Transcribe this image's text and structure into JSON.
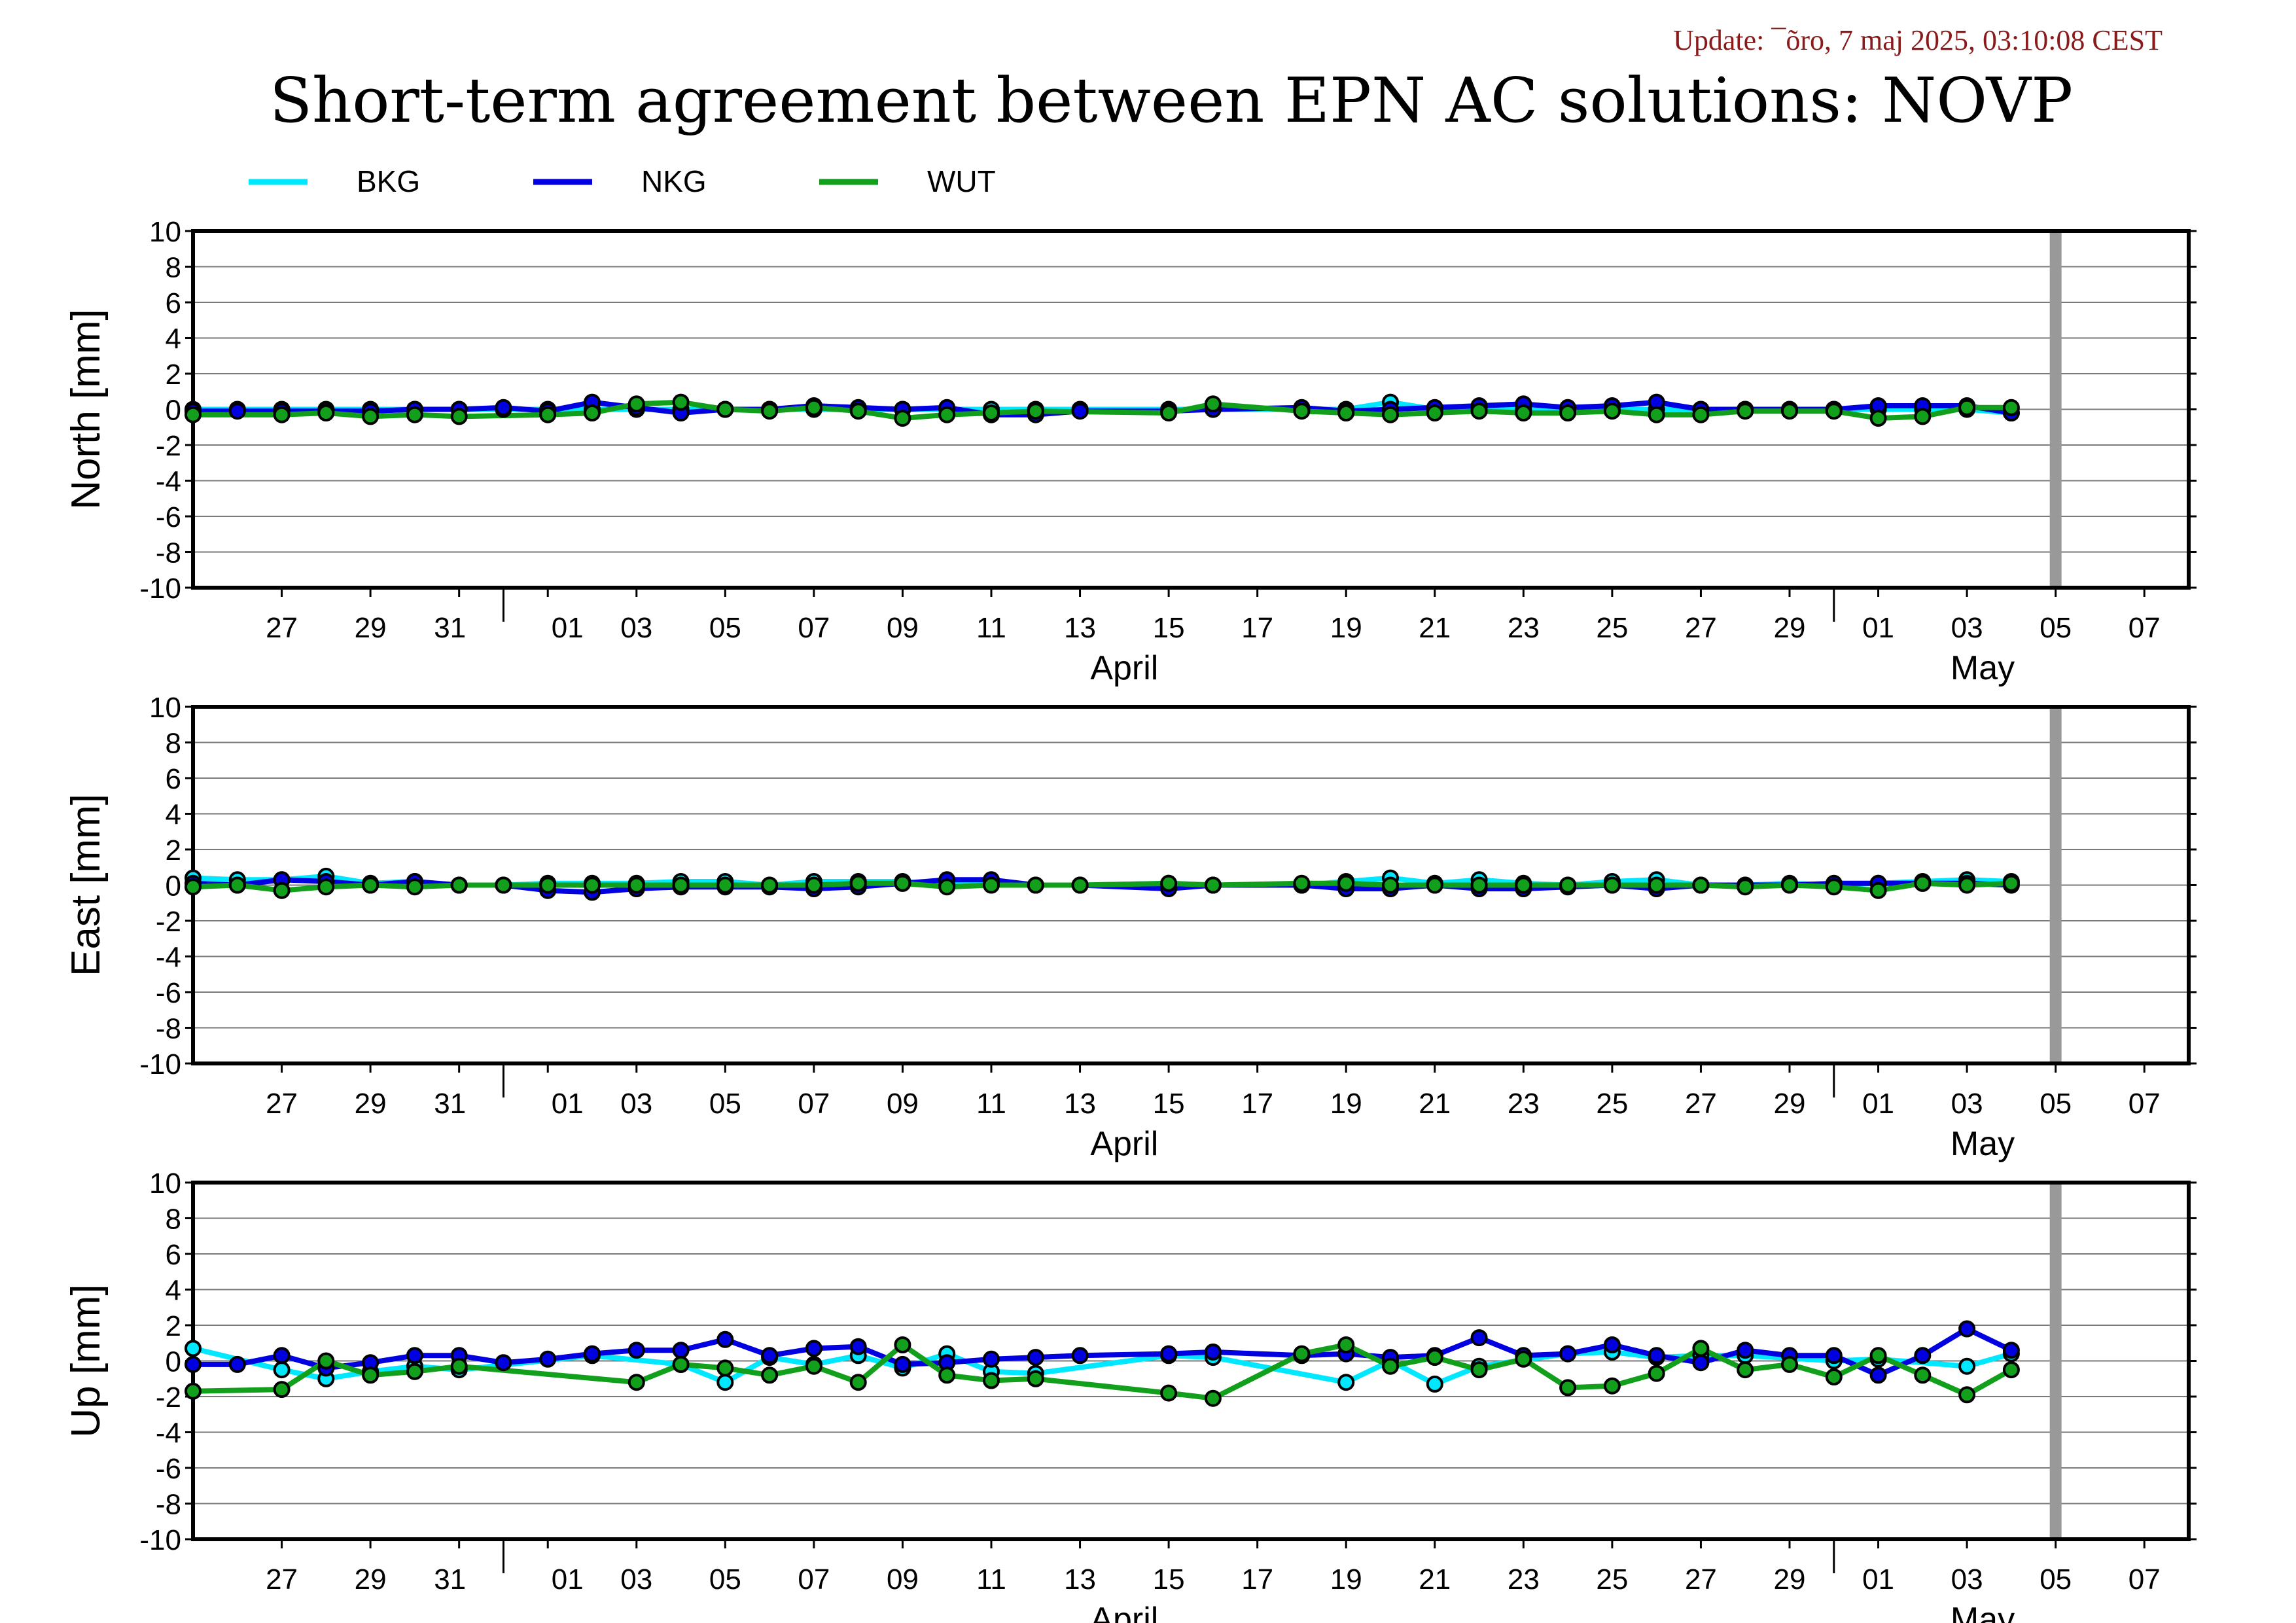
{
  "header": {
    "update": "Update: ¯õro, 7 maj 2025, 03:10:08 CEST",
    "title": "Short-term agreement between EPN AC solutions: NOVP"
  },
  "colors": {
    "BKG": "#00e8ff",
    "NKG": "#0000e0",
    "WUT": "#12a01c",
    "update_text": "#8b1a1a",
    "current_day_bar": "#999999"
  },
  "legend": [
    {
      "name": "BKG",
      "color": "#00e8ff"
    },
    {
      "name": "NKG",
      "color": "#0000e0"
    },
    {
      "name": "WUT",
      "color": "#12a01c"
    }
  ],
  "chart_data": {
    "type": "line",
    "x_start": "2025-03-25",
    "x_end": "2025-05-09",
    "current_day": "2025-05-06",
    "tick_labels": [
      "27",
      "29",
      "31",
      "01",
      "03",
      "05",
      "07",
      "09",
      "11",
      "13",
      "15",
      "17",
      "19",
      "21",
      "23",
      "25",
      "27",
      "29",
      "01",
      "03",
      "05",
      "07",
      "09"
    ],
    "month_labels": [
      "April",
      "May"
    ],
    "ylim": [
      -10,
      10
    ],
    "y_ticks": [
      10,
      8,
      6,
      4,
      2,
      0,
      -2,
      -4,
      -6,
      -8,
      -10
    ],
    "grid": true,
    "legend_position": "top",
    "panels": [
      {
        "ylabel": "North [mm]",
        "series": [
          {
            "name": "BKG",
            "dates": [
              "2025-03-25",
              "2025-03-26",
              "2025-03-27",
              "2025-03-28",
              "2025-03-29",
              "2025-03-30",
              "2025-03-31",
              "2025-04-01",
              "2025-04-02",
              "2025-04-03",
              "2025-04-04",
              "2025-04-05",
              "2025-04-06",
              "2025-04-07",
              "2025-04-08",
              "2025-04-09",
              "2025-04-10",
              "2025-04-11",
              "2025-04-12",
              "2025-04-13",
              "2025-04-14",
              "2025-04-16",
              "2025-04-17",
              "2025-04-19",
              "2025-04-20",
              "2025-04-21",
              "2025-04-22",
              "2025-04-23",
              "2025-04-24",
              "2025-04-25",
              "2025-04-26",
              "2025-04-27",
              "2025-04-28",
              "2025-04-29",
              "2025-04-30",
              "2025-05-01",
              "2025-05-02",
              "2025-05-03",
              "2025-05-04",
              "2025-05-05"
            ],
            "values": [
              0,
              0,
              0,
              0,
              0,
              0,
              0,
              0,
              0,
              0,
              0,
              0,
              0,
              0,
              0,
              0,
              0,
              0,
              0,
              0,
              0,
              0,
              0,
              0,
              0,
              0.4,
              0,
              0,
              0,
              0,
              0,
              0,
              0,
              0,
              0,
              0,
              0,
              0,
              0,
              -0.2
            ]
          },
          {
            "name": "NKG",
            "dates": [
              "2025-03-25",
              "2025-03-26",
              "2025-03-27",
              "2025-03-28",
              "2025-03-29",
              "2025-03-30",
              "2025-03-31",
              "2025-04-01",
              "2025-04-02",
              "2025-04-03",
              "2025-04-04",
              "2025-04-05",
              "2025-04-06",
              "2025-04-07",
              "2025-04-08",
              "2025-04-09",
              "2025-04-10",
              "2025-04-11",
              "2025-04-12",
              "2025-04-13",
              "2025-04-14",
              "2025-04-16",
              "2025-04-17",
              "2025-04-19",
              "2025-04-20",
              "2025-04-21",
              "2025-04-22",
              "2025-04-23",
              "2025-04-24",
              "2025-04-25",
              "2025-04-26",
              "2025-04-27",
              "2025-04-28",
              "2025-04-29",
              "2025-04-30",
              "2025-05-01",
              "2025-05-02",
              "2025-05-03",
              "2025-05-04",
              "2025-05-05"
            ],
            "values": [
              -0.1,
              -0.1,
              -0.1,
              -0.1,
              -0.1,
              0,
              0,
              0.1,
              -0.1,
              0.4,
              0.1,
              -0.2,
              0,
              0,
              0.2,
              0.1,
              0,
              0.1,
              -0.3,
              -0.3,
              -0.1,
              -0.1,
              0,
              0.1,
              -0.1,
              0,
              0.1,
              0.2,
              0.3,
              0.1,
              0.2,
              0.4,
              0,
              0,
              0,
              0,
              0.2,
              0.2,
              0.2,
              -0.2
            ]
          },
          {
            "name": "WUT",
            "dates": [
              "2025-03-25",
              "2025-03-27",
              "2025-03-28",
              "2025-03-29",
              "2025-03-30",
              "2025-03-31",
              "2025-04-02",
              "2025-04-03",
              "2025-04-04",
              "2025-04-05",
              "2025-04-06",
              "2025-04-07",
              "2025-04-08",
              "2025-04-09",
              "2025-04-10",
              "2025-04-11",
              "2025-04-12",
              "2025-04-13",
              "2025-04-16",
              "2025-04-17",
              "2025-04-19",
              "2025-04-20",
              "2025-04-21",
              "2025-04-22",
              "2025-04-23",
              "2025-04-24",
              "2025-04-25",
              "2025-04-26",
              "2025-04-27",
              "2025-04-28",
              "2025-04-29",
              "2025-04-30",
              "2025-05-01",
              "2025-05-02",
              "2025-05-03",
              "2025-05-04",
              "2025-05-05"
            ],
            "values": [
              -0.3,
              -0.3,
              -0.2,
              -0.4,
              -0.3,
              -0.4,
              -0.3,
              -0.2,
              0.3,
              0.4,
              0,
              -0.1,
              0.1,
              -0.1,
              -0.5,
              -0.3,
              -0.2,
              -0.1,
              -0.2,
              0.3,
              -0.1,
              -0.2,
              -0.3,
              -0.2,
              -0.1,
              -0.2,
              -0.2,
              -0.1,
              -0.3,
              -0.3,
              -0.1,
              -0.1,
              -0.1,
              -0.5,
              -0.4,
              0.1,
              0.1
            ]
          }
        ]
      },
      {
        "ylabel": "East [mm]",
        "series": [
          {
            "name": "BKG",
            "dates": [
              "2025-03-25",
              "2025-03-26",
              "2025-03-27",
              "2025-03-28",
              "2025-03-29",
              "2025-03-30",
              "2025-03-31",
              "2025-04-01",
              "2025-04-02",
              "2025-04-03",
              "2025-04-04",
              "2025-04-05",
              "2025-04-06",
              "2025-04-07",
              "2025-04-08",
              "2025-04-09",
              "2025-04-10",
              "2025-04-11",
              "2025-04-12",
              "2025-04-13",
              "2025-04-14",
              "2025-04-16",
              "2025-04-17",
              "2025-04-19",
              "2025-04-20",
              "2025-04-21",
              "2025-04-22",
              "2025-04-23",
              "2025-04-24",
              "2025-04-25",
              "2025-04-26",
              "2025-04-27",
              "2025-04-28",
              "2025-04-29",
              "2025-04-30",
              "2025-05-01",
              "2025-05-02",
              "2025-05-03",
              "2025-05-04",
              "2025-05-05"
            ],
            "values": [
              0.4,
              0.3,
              0.3,
              0.5,
              0.1,
              0.2,
              0,
              0,
              0.1,
              0.1,
              0.1,
              0.2,
              0.2,
              0,
              0.2,
              0.2,
              0.2,
              0,
              0.2,
              0,
              0,
              0.1,
              0,
              0,
              0.2,
              0.4,
              0.1,
              0.3,
              0.1,
              0,
              0.2,
              0.3,
              0,
              0,
              0.1,
              0,
              0.1,
              0.2,
              0.3,
              0.2
            ]
          },
          {
            "name": "NKG",
            "dates": [
              "2025-03-25",
              "2025-03-26",
              "2025-03-27",
              "2025-03-28",
              "2025-03-29",
              "2025-03-30",
              "2025-03-31",
              "2025-04-01",
              "2025-04-02",
              "2025-04-03",
              "2025-04-04",
              "2025-04-05",
              "2025-04-06",
              "2025-04-07",
              "2025-04-08",
              "2025-04-09",
              "2025-04-10",
              "2025-04-11",
              "2025-04-12",
              "2025-04-13",
              "2025-04-14",
              "2025-04-16",
              "2025-04-17",
              "2025-04-19",
              "2025-04-20",
              "2025-04-21",
              "2025-04-22",
              "2025-04-23",
              "2025-04-24",
              "2025-04-25",
              "2025-04-26",
              "2025-04-27",
              "2025-04-28",
              "2025-04-29",
              "2025-04-30",
              "2025-05-01",
              "2025-05-02",
              "2025-05-03",
              "2025-05-04",
              "2025-05-05"
            ],
            "values": [
              0.1,
              0,
              0.3,
              0.2,
              0,
              0.2,
              0,
              0,
              -0.3,
              -0.4,
              -0.2,
              -0.1,
              -0.1,
              -0.1,
              -0.2,
              -0.1,
              0.1,
              0.3,
              0.3,
              0,
              0,
              -0.2,
              0,
              0,
              -0.2,
              -0.2,
              0,
              -0.2,
              -0.2,
              -0.1,
              0,
              -0.2,
              0,
              0,
              0,
              0.1,
              0.1,
              0.1,
              0.1,
              0
            ]
          },
          {
            "name": "WUT",
            "dates": [
              "2025-03-25",
              "2025-03-26",
              "2025-03-27",
              "2025-03-28",
              "2025-03-29",
              "2025-03-30",
              "2025-03-31",
              "2025-04-01",
              "2025-04-02",
              "2025-04-03",
              "2025-04-04",
              "2025-04-05",
              "2025-04-06",
              "2025-04-07",
              "2025-04-08",
              "2025-04-09",
              "2025-04-10",
              "2025-04-11",
              "2025-04-12",
              "2025-04-13",
              "2025-04-14",
              "2025-04-16",
              "2025-04-17",
              "2025-04-19",
              "2025-04-20",
              "2025-04-21",
              "2025-04-22",
              "2025-04-23",
              "2025-04-24",
              "2025-04-25",
              "2025-04-26",
              "2025-04-27",
              "2025-04-28",
              "2025-04-29",
              "2025-04-30",
              "2025-05-01",
              "2025-05-02",
              "2025-05-03",
              "2025-05-04",
              "2025-05-05"
            ],
            "values": [
              -0.1,
              0,
              -0.3,
              -0.1,
              0,
              -0.1,
              0,
              0,
              0,
              0,
              0,
              0,
              0,
              0,
              0,
              0.1,
              0.1,
              -0.1,
              0,
              0,
              0,
              0.1,
              0,
              0.1,
              0.1,
              0,
              0,
              0,
              0,
              0,
              0,
              0,
              0,
              -0.1,
              0,
              -0.1,
              -0.3,
              0.1,
              0,
              0.1
            ]
          }
        ]
      },
      {
        "ylabel": "Up [mm]",
        "series": [
          {
            "name": "BKG",
            "dates": [
              "2025-03-25",
              "2025-03-27",
              "2025-03-28",
              "2025-03-29",
              "2025-03-30",
              "2025-03-31",
              "2025-04-03",
              "2025-04-05",
              "2025-04-06",
              "2025-04-07",
              "2025-04-08",
              "2025-04-09",
              "2025-04-10",
              "2025-04-11",
              "2025-04-12",
              "2025-04-13",
              "2025-04-16",
              "2025-04-17",
              "2025-04-20",
              "2025-04-21",
              "2025-04-22",
              "2025-04-23",
              "2025-04-25",
              "2025-04-26",
              "2025-04-27",
              "2025-04-28",
              "2025-04-29",
              "2025-05-01",
              "2025-05-02",
              "2025-05-04",
              "2025-05-05"
            ],
            "values": [
              0.7,
              -0.5,
              -1,
              -0.6,
              -0.3,
              -0.5,
              0.3,
              -0.2,
              -1.2,
              0.2,
              -0.2,
              0.3,
              -0.4,
              0.4,
              -0.6,
              -0.7,
              0.3,
              0.2,
              -1.2,
              0,
              -1.3,
              -0.3,
              0.4,
              0.5,
              0.2,
              0.3,
              0.3,
              0,
              0.1,
              -0.3,
              0.4
            ]
          },
          {
            "name": "NKG",
            "dates": [
              "2025-03-25",
              "2025-03-26",
              "2025-03-27",
              "2025-03-28",
              "2025-03-29",
              "2025-03-30",
              "2025-03-31",
              "2025-04-01",
              "2025-04-02",
              "2025-04-03",
              "2025-04-04",
              "2025-04-05",
              "2025-04-06",
              "2025-04-07",
              "2025-04-08",
              "2025-04-09",
              "2025-04-10",
              "2025-04-11",
              "2025-04-12",
              "2025-04-13",
              "2025-04-14",
              "2025-04-16",
              "2025-04-17",
              "2025-04-19",
              "2025-04-20",
              "2025-04-21",
              "2025-04-22",
              "2025-04-23",
              "2025-04-24",
              "2025-04-25",
              "2025-04-26",
              "2025-04-27",
              "2025-04-28",
              "2025-04-29",
              "2025-04-30",
              "2025-05-01",
              "2025-05-02",
              "2025-05-03",
              "2025-05-04",
              "2025-05-05"
            ],
            "values": [
              -0.2,
              -0.2,
              0.3,
              -0.4,
              -0.1,
              0.3,
              0.3,
              -0.1,
              0.1,
              0.4,
              0.6,
              0.6,
              1.2,
              0.3,
              0.7,
              0.8,
              -0.2,
              -0.1,
              0.1,
              0.2,
              0.3,
              0.4,
              0.5,
              0.3,
              0.4,
              0.2,
              0.3,
              1.3,
              0.3,
              0.4,
              0.9,
              0.3,
              -0.1,
              0.6,
              0.3,
              0.3,
              -0.8,
              0.3,
              1.8,
              0.6
            ]
          },
          {
            "name": "WUT",
            "dates": [
              "2025-03-25",
              "2025-03-27",
              "2025-03-28",
              "2025-03-29",
              "2025-03-30",
              "2025-03-31",
              "2025-04-04",
              "2025-04-05",
              "2025-04-06",
              "2025-04-07",
              "2025-04-08",
              "2025-04-09",
              "2025-04-10",
              "2025-04-11",
              "2025-04-12",
              "2025-04-13",
              "2025-04-16",
              "2025-04-17",
              "2025-04-19",
              "2025-04-20",
              "2025-04-21",
              "2025-04-22",
              "2025-04-23",
              "2025-04-24",
              "2025-04-25",
              "2025-04-26",
              "2025-04-27",
              "2025-04-28",
              "2025-04-29",
              "2025-04-30",
              "2025-05-01",
              "2025-05-02",
              "2025-05-03",
              "2025-05-04",
              "2025-05-05"
            ],
            "values": [
              -1.7,
              -1.6,
              0,
              -0.8,
              -0.6,
              -0.3,
              -1.2,
              -0.2,
              -0.4,
              -0.8,
              -0.3,
              -1.2,
              0.9,
              -0.8,
              -1.1,
              -1,
              -1.8,
              -2.1,
              0.4,
              0.9,
              -0.3,
              0.2,
              -0.5,
              0.1,
              -1.5,
              -1.4,
              -0.7,
              0.7,
              -0.5,
              -0.2,
              -0.9,
              0.3,
              -0.8,
              -1.9,
              -0.5
            ]
          }
        ]
      }
    ]
  }
}
